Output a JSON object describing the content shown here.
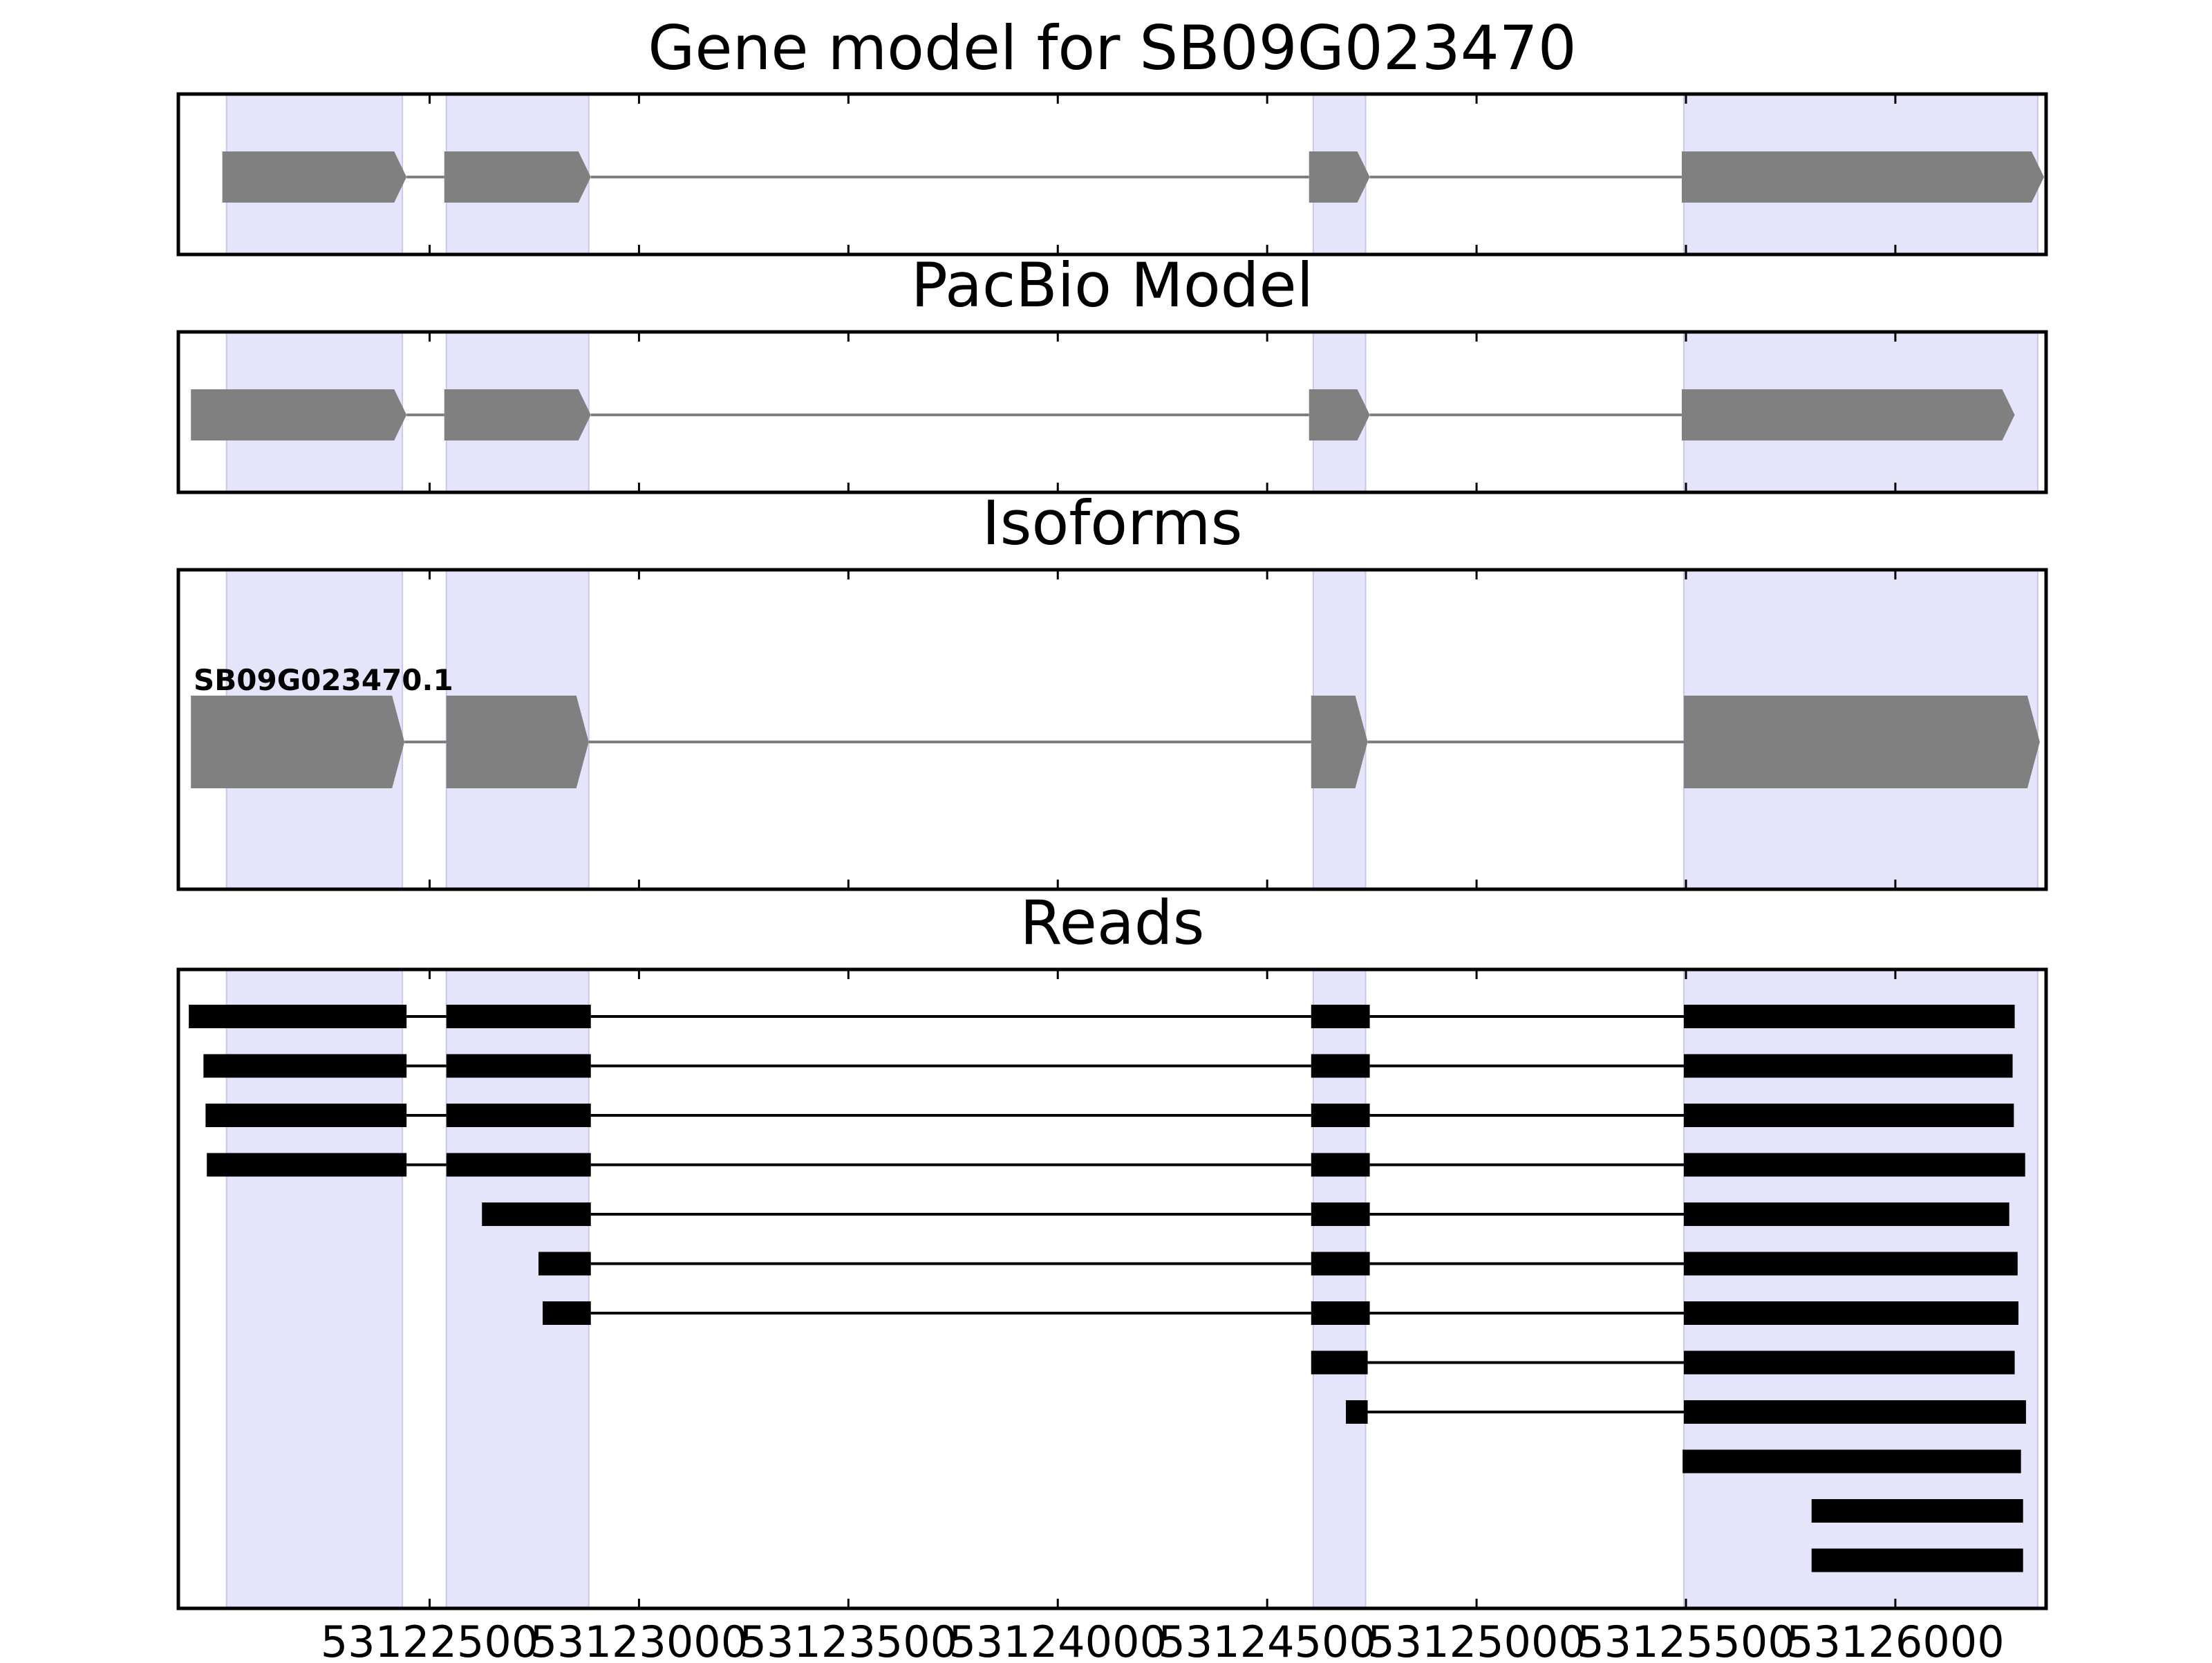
{
  "chart_data": {
    "type": "gene-track",
    "xlim": [
      53121900,
      53126360
    ],
    "xticks": [
      {
        "value": 53122500,
        "label": "53122500"
      },
      {
        "value": 53123000,
        "label": "53123000"
      },
      {
        "value": 53123500,
        "label": "53123500"
      },
      {
        "value": 53124000,
        "label": "53124000"
      },
      {
        "value": 53124500,
        "label": "53124500"
      },
      {
        "value": 53125000,
        "label": "53125000"
      },
      {
        "value": 53125500,
        "label": "53125500"
      },
      {
        "value": 53126000,
        "label": "53126000"
      }
    ],
    "exon_bands": [
      [
        53122015,
        53122435
      ],
      [
        53122540,
        53122880
      ],
      [
        53124610,
        53124735
      ],
      [
        53125495,
        53126340
      ]
    ],
    "colors": {
      "band": "#e4e4fb",
      "band_edge": "#c8c8ee",
      "model": "#808080",
      "read": "#000000",
      "frame": "#000000"
    },
    "panels": [
      {
        "id": "gene-model",
        "title": "Gene model for SB09G023470",
        "kind": "model",
        "exons": [
          [
            53122005,
            53122445
          ],
          [
            53122535,
            53122885
          ],
          [
            53124600,
            53124745
          ],
          [
            53125490,
            53126355
          ]
        ]
      },
      {
        "id": "pacbio-model",
        "title": "PacBio Model",
        "kind": "model",
        "exons": [
          [
            53121930,
            53122445
          ],
          [
            53122535,
            53122885
          ],
          [
            53124600,
            53124745
          ],
          [
            53125490,
            53126285
          ]
        ]
      },
      {
        "id": "isoforms",
        "title": "Isoforms",
        "kind": "model",
        "label": "SB09G023470.1",
        "exons": [
          [
            53121930,
            53122440
          ],
          [
            53122540,
            53122880
          ],
          [
            53124605,
            53124740
          ],
          [
            53125495,
            53126345
          ]
        ]
      },
      {
        "id": "reads",
        "title": "Reads",
        "kind": "reads",
        "reads": [
          [
            [
              53121925,
              53122445
            ],
            [
              53122540,
              53122885
            ],
            [
              53124605,
              53124745
            ],
            [
              53125495,
              53126285
            ]
          ],
          [
            [
              53121960,
              53122445
            ],
            [
              53122540,
              53122885
            ],
            [
              53124605,
              53124745
            ],
            [
              53125495,
              53126280
            ]
          ],
          [
            [
              53121965,
              53122445
            ],
            [
              53122540,
              53122885
            ],
            [
              53124605,
              53124745
            ],
            [
              53125495,
              53126283
            ]
          ],
          [
            [
              53121968,
              53122445
            ],
            [
              53122540,
              53122885
            ],
            [
              53124605,
              53124745
            ],
            [
              53125495,
              53126310
            ]
          ],
          [
            [
              53122625,
              53122885
            ],
            [
              53124605,
              53124745
            ],
            [
              53125495,
              53126272
            ]
          ],
          [
            [
              53122760,
              53122885
            ],
            [
              53124605,
              53124745
            ],
            [
              53125495,
              53126292
            ]
          ],
          [
            [
              53122770,
              53122885
            ],
            [
              53124605,
              53124745
            ],
            [
              53125495,
              53126294
            ]
          ],
          [
            [
              53124605,
              53124740
            ],
            [
              53125495,
              53126285
            ]
          ],
          [
            [
              53124688,
              53124740
            ],
            [
              53125495,
              53126312
            ]
          ],
          [
            [
              53125492,
              53126300
            ]
          ],
          [
            [
              53125800,
              53126305
            ]
          ],
          [
            [
              53125800,
              53126305
            ]
          ]
        ]
      }
    ]
  }
}
